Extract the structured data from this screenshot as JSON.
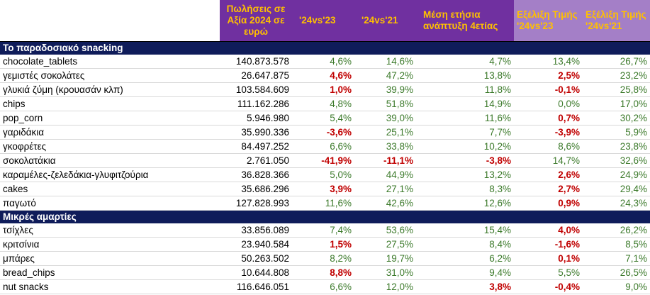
{
  "headers": {
    "sales": "Πωλήσεις σε Αξία 2024 σε ευρώ",
    "yoy23": "'24vs'23",
    "yoy21": "'24vs'21",
    "cagr": "Μέση ετήσια ανάπτυξη 4ετίας",
    "price23": "Εξέλιξη Τιμής '24vs'23",
    "price21": "Εξέλιξη Τιμής '24vs'21"
  },
  "sections": [
    {
      "title": "Το παραδοσιακό snacking",
      "rows": [
        {
          "name": "chocolate_tablets",
          "sales": "140.873.578",
          "yoy23": "4,6%",
          "yoy21": "14,6%",
          "cagr": "4,7%",
          "price23": "13,4%",
          "price21": "26,7%"
        },
        {
          "name": "γεμιστές σοκολάτες",
          "sales": "26.647.875",
          "yoy23": "4,6%",
          "yoy21": "47,2%",
          "cagr": "13,8%",
          "price23": "2,5%",
          "price21": "23,2%"
        },
        {
          "name": "γλυκιά ζύμη (κρουασάν κλπ)",
          "sales": "103.584.609",
          "yoy23": "1,0%",
          "yoy21": "39,9%",
          "cagr": "11,8%",
          "price23": "-0,1%",
          "price21": "25,8%"
        },
        {
          "name": "chips",
          "sales": "111.162.286",
          "yoy23": "4,8%",
          "yoy21": "51,8%",
          "cagr": "14,9%",
          "price23": "0,0%",
          "price21": "17,0%"
        },
        {
          "name": "pop_corn",
          "sales": "5.946.980",
          "yoy23": "5,4%",
          "yoy21": "39,0%",
          "cagr": "11,6%",
          "price23": "0,7%",
          "price21": "30,2%"
        },
        {
          "name": "γαριδάκια",
          "sales": "35.990.336",
          "yoy23": "-3,6%",
          "yoy21": "25,1%",
          "cagr": "7,7%",
          "price23": "-3,9%",
          "price21": "5,9%"
        },
        {
          "name": "γκοφρέτες",
          "sales": "84.497.252",
          "yoy23": "6,6%",
          "yoy21": "33,8%",
          "cagr": "10,2%",
          "price23": "8,6%",
          "price21": "23,8%"
        },
        {
          "name": "σοκολατάκια",
          "sales": "2.761.050",
          "yoy23": "-41,9%",
          "yoy21": "-11,1%",
          "cagr": "-3,8%",
          "price23": "14,7%",
          "price21": "32,6%"
        },
        {
          "name": "καραμέλες-ζελεδάκια-γλυφιτζούρια",
          "sales": "36.828.366",
          "yoy23": "5,0%",
          "yoy21": "44,9%",
          "cagr": "13,2%",
          "price23": "2,6%",
          "price21": "24,9%"
        },
        {
          "name": "cakes",
          "sales": "35.686.296",
          "yoy23": "3,9%",
          "yoy21": "27,1%",
          "cagr": "8,3%",
          "price23": "2,7%",
          "price21": "29,4%"
        },
        {
          "name": "παγωτό",
          "sales": "127.828.993",
          "yoy23": "11,6%",
          "yoy21": "42,6%",
          "cagr": "12,6%",
          "price23": "0,9%",
          "price21": "24,3%"
        }
      ]
    },
    {
      "title": "Μικρές αμαρτίες",
      "rows": [
        {
          "name": "τσίχλες",
          "sales": "33.856.089",
          "yoy23": "7,4%",
          "yoy21": "53,6%",
          "cagr": "15,4%",
          "price23": "4,0%",
          "price21": "26,2%"
        },
        {
          "name": "κριτσίνια",
          "sales": "23.940.584",
          "yoy23": "1,5%",
          "yoy21": "27,5%",
          "cagr": "8,4%",
          "price23": "-1,6%",
          "price21": "8,5%"
        },
        {
          "name": "μπάρες",
          "sales": "50.263.502",
          "yoy23": "8,2%",
          "yoy21": "19,7%",
          "cagr": "6,2%",
          "price23": "0,1%",
          "price21": "7,1%"
        },
        {
          "name": "bread_chips",
          "sales": "10.644.808",
          "yoy23": "8,8%",
          "yoy21": "31,0%",
          "cagr": "9,4%",
          "price23": "5,5%",
          "price21": "26,5%"
        },
        {
          "name": "nut snacks",
          "sales": "116.646.051",
          "yoy23": "6,6%",
          "yoy21": "12,0%",
          "cagr": "3,8%",
          "price23": "-0,4%",
          "price21": "9,0%"
        }
      ]
    }
  ],
  "red_cells": [
    [
      0,
      1,
      "yoy23"
    ],
    [
      0,
      1,
      "price23"
    ],
    [
      0,
      2,
      "yoy23"
    ],
    [
      0,
      2,
      "price23"
    ],
    [
      0,
      4,
      "price23"
    ],
    [
      0,
      5,
      "yoy23"
    ],
    [
      0,
      5,
      "price23"
    ],
    [
      0,
      7,
      "yoy23"
    ],
    [
      0,
      7,
      "yoy21"
    ],
    [
      0,
      7,
      "cagr"
    ],
    [
      0,
      8,
      "price23"
    ],
    [
      0,
      9,
      "yoy23"
    ],
    [
      0,
      9,
      "price23"
    ],
    [
      0,
      10,
      "price23"
    ],
    [
      1,
      0,
      "price23"
    ],
    [
      1,
      1,
      "yoy23"
    ],
    [
      1,
      1,
      "price23"
    ],
    [
      1,
      2,
      "price23"
    ],
    [
      1,
      3,
      "yoy23"
    ],
    [
      1,
      4,
      "cagr"
    ],
    [
      1,
      4,
      "price23"
    ]
  ],
  "colors": {
    "header_purple": "#7030a0",
    "header_light_purple": "#a47fc7",
    "header_text": "#ffc000",
    "section_band": "#0f1c5a",
    "positive": "#3c7a2b",
    "negative": "#c00000"
  }
}
